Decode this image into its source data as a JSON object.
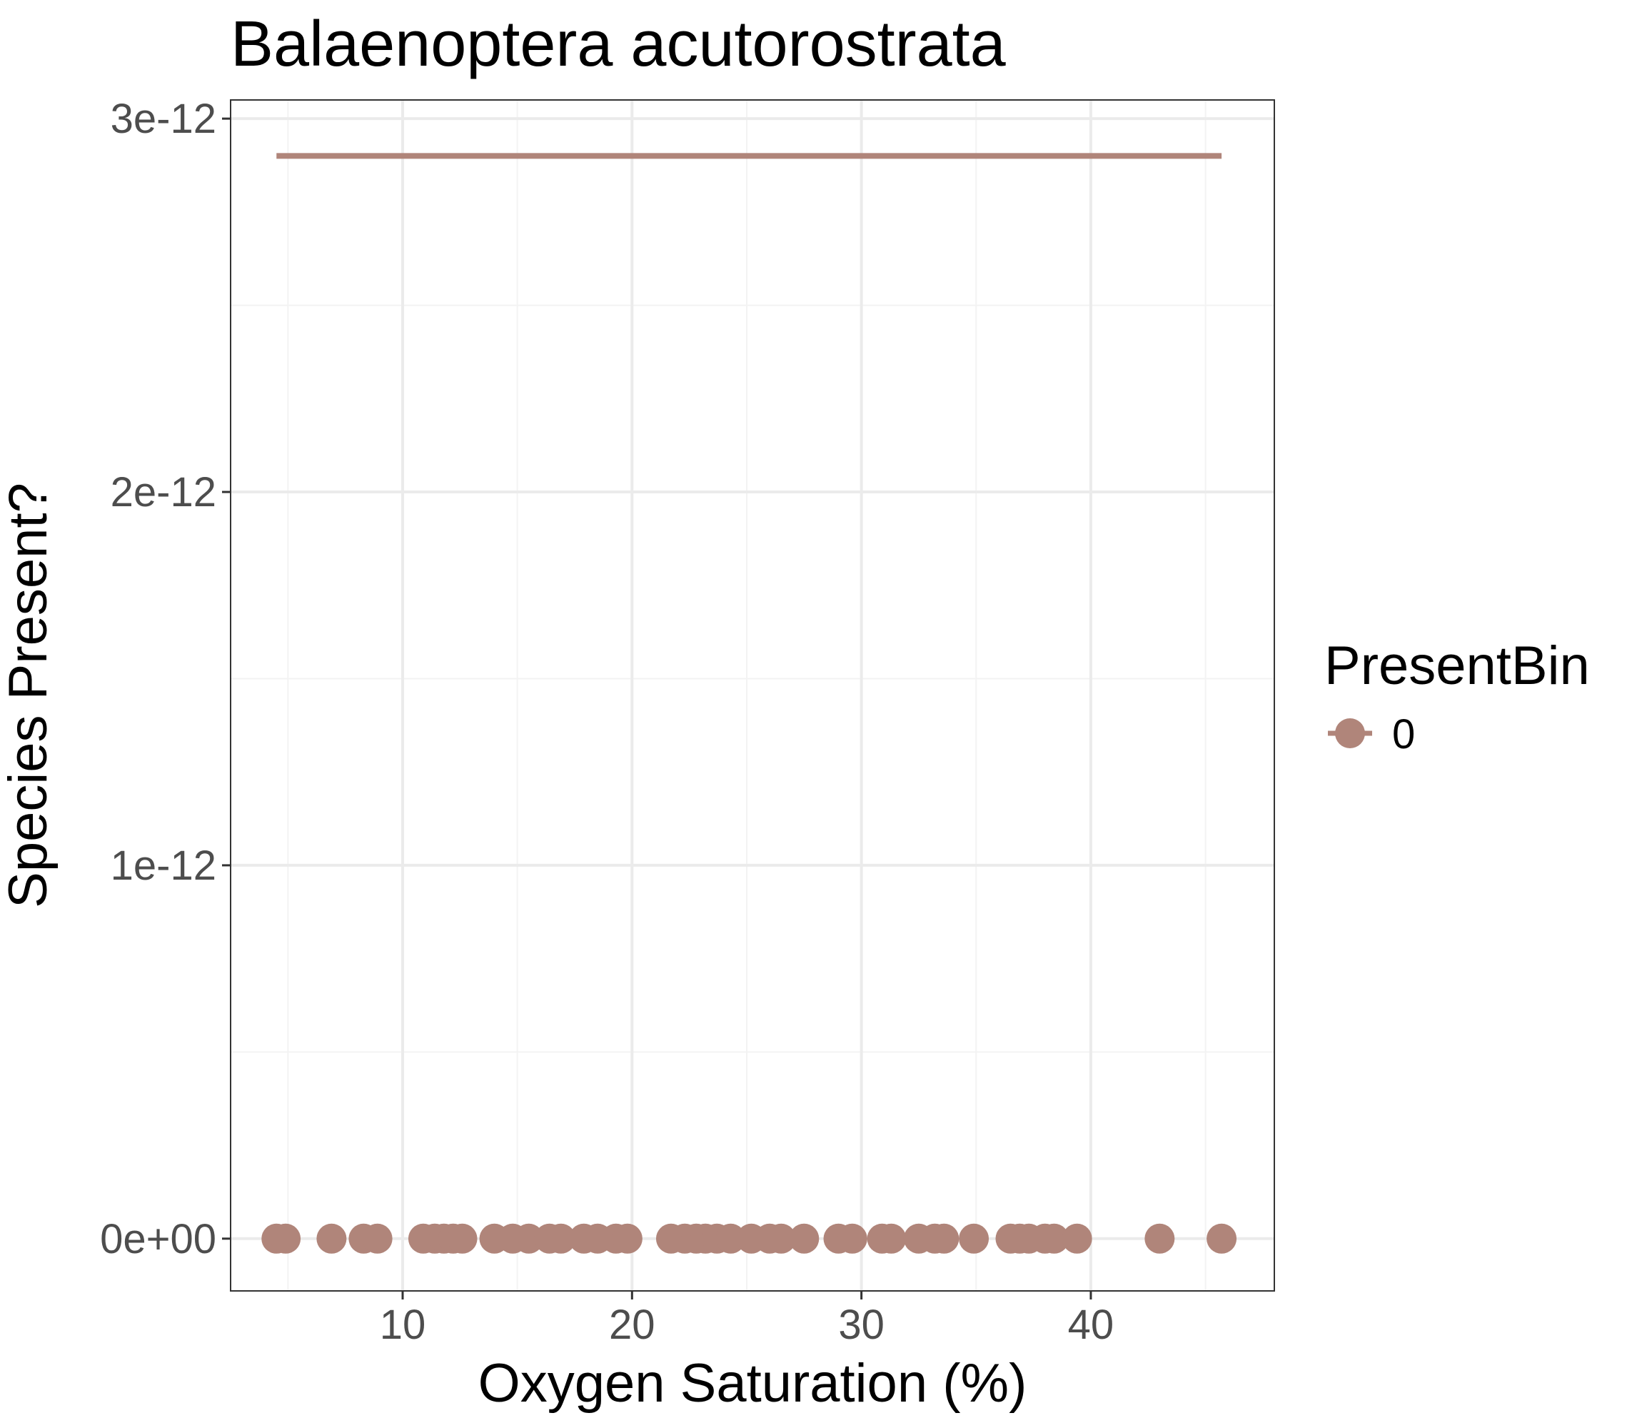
{
  "chart_data": {
    "type": "scatter",
    "title": "Balaenoptera acutorostrata",
    "xlabel": "Oxygen Saturation (%)",
    "ylabel": "Species Present?",
    "xlim": [
      2.5,
      48
    ],
    "ylim": [
      -1.4e-13,
      3.05e-12
    ],
    "x_ticks": [
      10,
      20,
      30,
      40
    ],
    "x_tick_labels": [
      "10",
      "20",
      "30",
      "40"
    ],
    "y_ticks": [
      0,
      1e-12,
      2e-12,
      3e-12
    ],
    "y_tick_labels": [
      "0e+00",
      "1e-12",
      "2e-12",
      "3e-12"
    ],
    "grid": true,
    "legend": {
      "title": "PresentBin",
      "position": "right",
      "entries": [
        "0"
      ]
    },
    "series_color": "#b0857a",
    "series": [
      {
        "name": "0",
        "points": {
          "x": [
            4.5,
            4.9,
            6.9,
            8.3,
            8.9,
            10.9,
            11.4,
            11.8,
            12.2,
            12.6,
            14.0,
            14.8,
            15.5,
            16.4,
            16.9,
            17.9,
            18.5,
            19.3,
            19.8,
            21.7,
            22.3,
            22.8,
            23.2,
            23.7,
            24.3,
            25.2,
            26.0,
            26.5,
            27.5,
            29.0,
            29.6,
            30.9,
            31.3,
            32.5,
            33.2,
            33.6,
            34.9,
            36.5,
            36.9,
            37.3,
            38.0,
            38.4,
            39.4,
            43.0,
            45.7
          ],
          "y": [
            0,
            0,
            0,
            0,
            0,
            0,
            0,
            0,
            0,
            0,
            0,
            0,
            0,
            0,
            0,
            0,
            0,
            0,
            0,
            0,
            0,
            0,
            0,
            0,
            0,
            0,
            0,
            0,
            0,
            0,
            0,
            0,
            0,
            0,
            0,
            0,
            0,
            0,
            0,
            0,
            0,
            0,
            0,
            0,
            0
          ]
        },
        "fit_line": {
          "x": [
            4.5,
            45.7
          ],
          "y": [
            2.9e-12,
            2.9e-12
          ]
        }
      }
    ]
  }
}
